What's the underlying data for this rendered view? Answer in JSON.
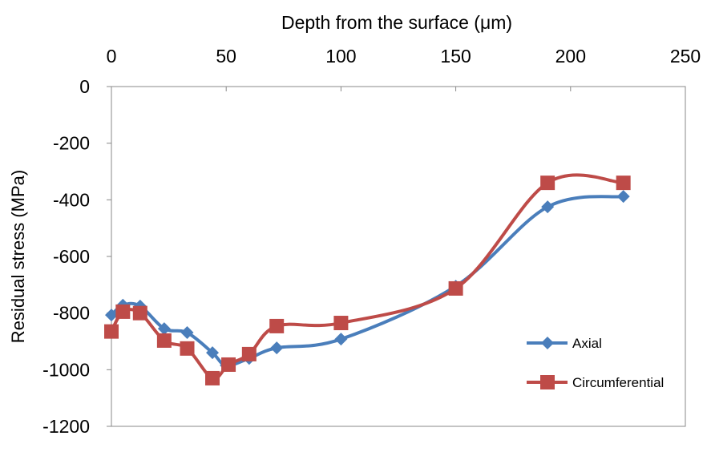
{
  "chart_data": {
    "type": "line",
    "title": "",
    "xlabel": "Depth from the surface (μm)",
    "ylabel": "Residual stress (MPa)",
    "x_axis_position": "top",
    "xlim": [
      0,
      250
    ],
    "ylim": [
      -1200,
      0
    ],
    "xticks": [
      0,
      50,
      100,
      150,
      200,
      250
    ],
    "yticks": [
      0,
      -200,
      -400,
      -600,
      -800,
      -1000,
      -1200
    ],
    "grid": false,
    "smoothed": true,
    "legend_position": "right",
    "series": [
      {
        "name": "Axial",
        "color": "#4a7ebb",
        "marker": "diamond",
        "x": [
          0,
          5,
          12.5,
          23,
          33,
          44,
          50,
          60,
          72,
          100,
          150,
          190,
          223
        ],
        "y": [
          -807,
          -772,
          -775,
          -855,
          -869,
          -940,
          -985,
          -960,
          -923,
          -892,
          -705,
          -425,
          -388
        ]
      },
      {
        "name": "Circumferential",
        "color": "#be4b48",
        "marker": "square",
        "x": [
          0,
          5,
          12.5,
          23,
          33,
          44,
          51,
          60,
          72,
          100,
          150,
          190,
          223
        ],
        "y": [
          -865,
          -795,
          -800,
          -897,
          -925,
          -1030,
          -982,
          -945,
          -846,
          -835,
          -713,
          -340,
          -340
        ]
      }
    ]
  }
}
